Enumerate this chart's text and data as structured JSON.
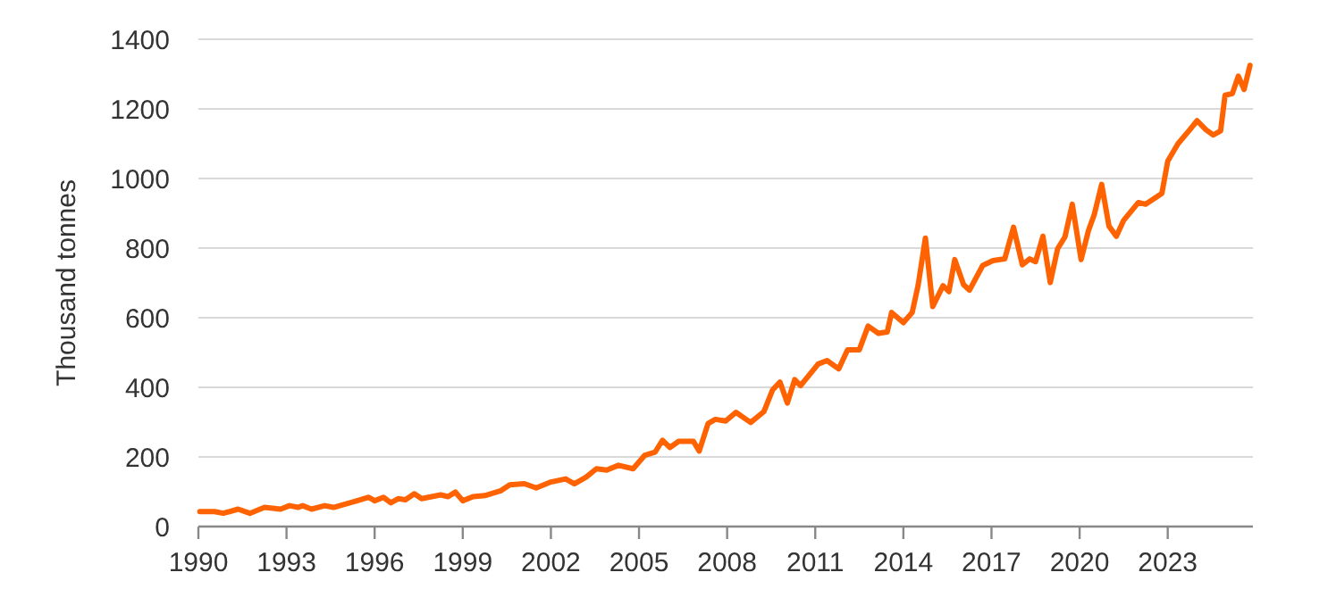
{
  "chart_data": {
    "type": "line",
    "ylabel": "Thousand tonnes",
    "xlim": [
      1990,
      2025.9
    ],
    "ylim": [
      0,
      1400
    ],
    "xticks": [
      1990,
      1993,
      1996,
      1999,
      2002,
      2005,
      2008,
      2011,
      2014,
      2017,
      2020,
      2023
    ],
    "yticks": [
      0,
      200,
      400,
      600,
      800,
      1000,
      1200,
      1400
    ],
    "grid": "y",
    "marker": "none",
    "line_style": "solid",
    "series": [
      {
        "color": "#ff6200",
        "x": [
          1990.05,
          1990.55,
          1990.85,
          1991.35,
          1991.75,
          1992.25,
          1992.8,
          1993.1,
          1993.4,
          1993.55,
          1993.85,
          1994.3,
          1994.6,
          1995.4,
          1995.8,
          1996.0,
          1996.3,
          1996.55,
          1996.8,
          1997.05,
          1997.35,
          1997.6,
          1998.25,
          1998.5,
          1998.75,
          1999.0,
          1999.35,
          1999.75,
          2000.3,
          2000.6,
          2001.1,
          2001.5,
          2002.0,
          2002.5,
          2002.8,
          2003.2,
          2003.55,
          2003.9,
          2004.3,
          2004.8,
          2005.2,
          2005.55,
          2005.8,
          2006.05,
          2006.35,
          2006.85,
          2007.05,
          2007.35,
          2007.6,
          2007.95,
          2008.3,
          2008.8,
          2009.25,
          2009.55,
          2009.8,
          2010.05,
          2010.3,
          2010.5,
          2011.1,
          2011.4,
          2011.8,
          2012.1,
          2012.5,
          2012.8,
          2013.15,
          2013.45,
          2013.6,
          2014.0,
          2014.3,
          2014.5,
          2014.75,
          2015.0,
          2015.35,
          2015.55,
          2015.75,
          2016.05,
          2016.25,
          2016.7,
          2017.05,
          2017.45,
          2017.75,
          2018.05,
          2018.3,
          2018.5,
          2018.75,
          2019.0,
          2019.25,
          2019.5,
          2019.75,
          2020.05,
          2020.3,
          2020.5,
          2020.75,
          2021.0,
          2021.25,
          2021.5,
          2022.0,
          2022.25,
          2022.8,
          2023.0,
          2023.35,
          2023.7,
          2024.0,
          2024.3,
          2024.55,
          2024.8,
          2024.95,
          2025.2,
          2025.4,
          2025.6,
          2025.8
        ],
        "values": [
          43,
          43,
          38,
          50,
          38,
          55,
          50,
          60,
          55,
          60,
          50,
          60,
          55,
          74,
          84,
          74,
          84,
          68,
          80,
          77,
          94,
          80,
          91,
          86,
          99,
          74,
          86,
          89,
          103,
          120,
          123,
          111,
          128,
          137,
          123,
          142,
          166,
          162,
          176,
          166,
          205,
          214,
          248,
          227,
          245,
          245,
          217,
          296,
          308,
          303,
          328,
          299,
          330,
          393,
          415,
          355,
          422,
          405,
          467,
          477,
          453,
          508,
          508,
          576,
          555,
          559,
          615,
          586,
          615,
          692,
          829,
          632,
          692,
          675,
          767,
          695,
          679,
          750,
          764,
          769,
          860,
          752,
          769,
          761,
          834,
          701,
          798,
          832,
          926,
          767,
          850,
          897,
          983,
          863,
          834,
          880,
          931,
          926,
          957,
          1050,
          1100,
          1135,
          1166,
          1140,
          1125,
          1137,
          1239,
          1244,
          1294,
          1256,
          1325
        ]
      }
    ]
  }
}
